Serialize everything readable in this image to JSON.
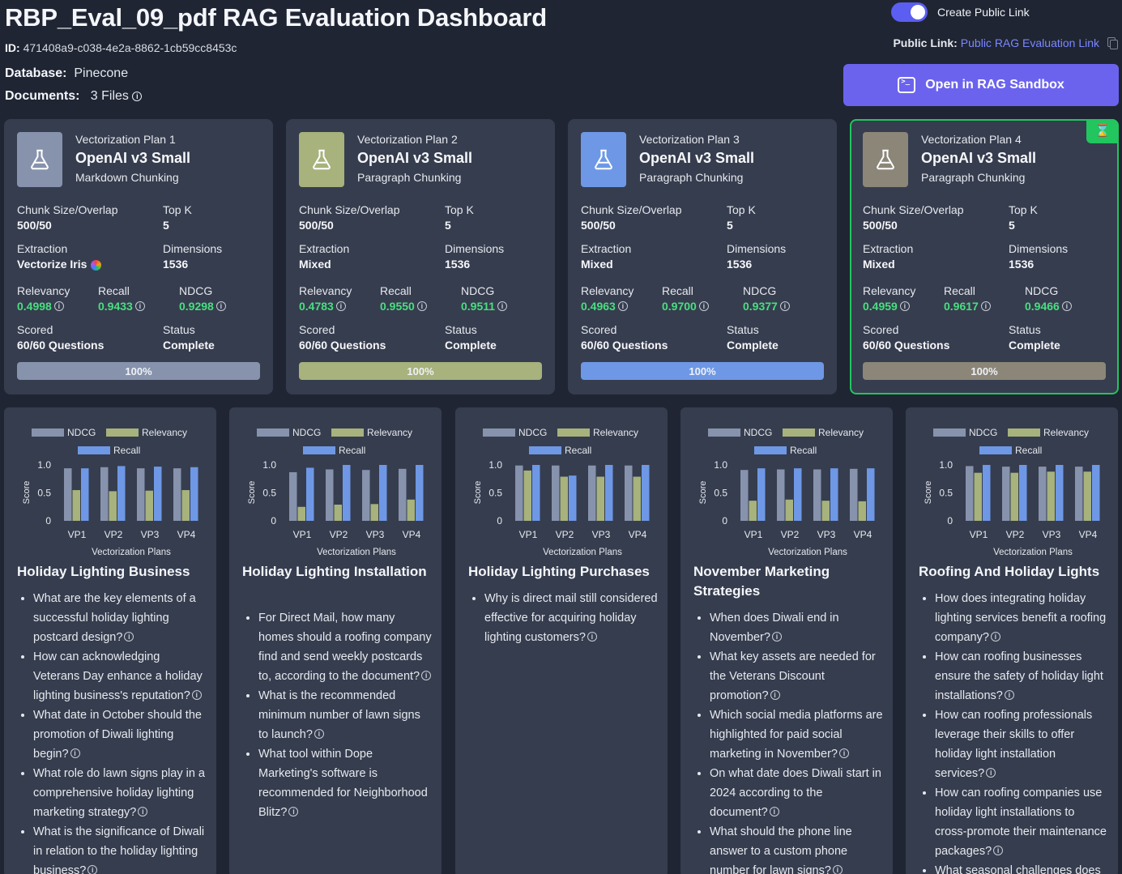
{
  "header": {
    "title": "RBP_Eval_09_pdf RAG Evaluation Dashboard",
    "id_label": "ID:",
    "id_value": "471408a9-c038-4e2a-8862-1cb59cc8453c",
    "database_label": "Database:",
    "database_value": "Pinecone",
    "documents_label": "Documents:",
    "documents_value": "3 Files"
  },
  "public": {
    "toggle_label": "Create Public Link",
    "toggle_on": true,
    "link_label": "Public Link:",
    "link_text": "Public RAG Evaluation Link"
  },
  "sandbox_button": "Open in RAG Sandbox",
  "labels": {
    "chunk": "Chunk Size/Overlap",
    "topk": "Top K",
    "extraction": "Extraction",
    "dimensions": "Dimensions",
    "relevancy": "Relevancy",
    "recall": "Recall",
    "ndcg": "NDCG",
    "scored": "Scored",
    "status": "Status"
  },
  "colors": {
    "ndcg": "#8793ad",
    "relevancy": "#a7b27c",
    "recall": "#6e98e6",
    "plan4": "#8c8678",
    "selected_border": "#22c55e",
    "accent": "#6b63ee",
    "metric_value": "#4ade80"
  },
  "plans": [
    {
      "num": "Vectorization Plan 1",
      "model": "OpenAI v3 Small",
      "chunking": "Markdown Chunking",
      "chunk": "500/50",
      "topk": "5",
      "extraction": "Vectorize Iris",
      "dimensions": "1536",
      "relevancy": "0.4998",
      "recall": "0.9433",
      "ndcg": "0.9298",
      "scored": "60/60 Questions",
      "status": "Complete",
      "progress_label": "100%",
      "progress": 1.0,
      "color": "#8793ad",
      "selected": false
    },
    {
      "num": "Vectorization Plan 2",
      "model": "OpenAI v3 Small",
      "chunking": "Paragraph Chunking",
      "chunk": "500/50",
      "topk": "5",
      "extraction": "Mixed",
      "dimensions": "1536",
      "relevancy": "0.4783",
      "recall": "0.9550",
      "ndcg": "0.9511",
      "scored": "60/60 Questions",
      "status": "Complete",
      "progress_label": "100%",
      "progress": 1.0,
      "color": "#a7b27c",
      "selected": false
    },
    {
      "num": "Vectorization Plan 3",
      "model": "OpenAI v3 Small",
      "chunking": "Paragraph Chunking",
      "chunk": "500/50",
      "topk": "5",
      "extraction": "Mixed",
      "dimensions": "1536",
      "relevancy": "0.4963",
      "recall": "0.9700",
      "ndcg": "0.9377",
      "scored": "60/60 Questions",
      "status": "Complete",
      "progress_label": "100%",
      "progress": 1.0,
      "color": "#6e98e6",
      "selected": false
    },
    {
      "num": "Vectorization Plan 4",
      "model": "OpenAI v3 Small",
      "chunking": "Paragraph Chunking",
      "chunk": "500/50",
      "topk": "5",
      "extraction": "Mixed",
      "dimensions": "1536",
      "relevancy": "0.4959",
      "recall": "0.9617",
      "ndcg": "0.9466",
      "scored": "60/60 Questions",
      "status": "Complete",
      "progress_label": "100%",
      "progress": 1.0,
      "color": "#8c8678",
      "selected": true
    }
  ],
  "chart_data": [
    {
      "type": "bar",
      "title": "",
      "xlabel": "Vectorization Plans",
      "ylabel": "Score",
      "ylim": [
        0,
        1.0
      ],
      "yticks": [
        "0",
        "0.5",
        "1.0"
      ],
      "categories": [
        "VP1",
        "VP2",
        "VP3",
        "VP4"
      ],
      "legend": [
        "NDCG",
        "Relevancy",
        "Recall"
      ],
      "series": [
        {
          "name": "NDCG",
          "values": [
            0.94,
            0.96,
            0.94,
            0.94
          ]
        },
        {
          "name": "Relevancy",
          "values": [
            0.55,
            0.53,
            0.54,
            0.55
          ]
        },
        {
          "name": "Recall",
          "values": [
            0.94,
            0.98,
            0.97,
            0.96
          ]
        }
      ]
    },
    {
      "type": "bar",
      "title": "",
      "xlabel": "Vectorization Plans",
      "ylabel": "Score",
      "ylim": [
        0,
        1.0
      ],
      "yticks": [
        "0",
        "0.5",
        "1.0"
      ],
      "categories": [
        "VP1",
        "VP2",
        "VP3",
        "VP4"
      ],
      "legend": [
        "NDCG",
        "Relevancy",
        "Recall"
      ],
      "series": [
        {
          "name": "NDCG",
          "values": [
            0.87,
            0.92,
            0.91,
            0.93
          ]
        },
        {
          "name": "Relevancy",
          "values": [
            0.25,
            0.29,
            0.3,
            0.38
          ]
        },
        {
          "name": "Recall",
          "values": [
            0.95,
            1.0,
            1.0,
            1.0
          ]
        }
      ]
    },
    {
      "type": "bar",
      "title": "",
      "xlabel": "Vectorization Plans",
      "ylabel": "Score",
      "ylim": [
        0,
        1.0
      ],
      "yticks": [
        "0",
        "0.5",
        "1.0"
      ],
      "categories": [
        "VP1",
        "VP2",
        "VP3",
        "VP4"
      ],
      "legend": [
        "NDCG",
        "Relevancy",
        "Recall"
      ],
      "series": [
        {
          "name": "NDCG",
          "values": [
            0.99,
            0.99,
            0.99,
            0.99
          ]
        },
        {
          "name": "Relevancy",
          "values": [
            0.9,
            0.79,
            0.79,
            0.79
          ]
        },
        {
          "name": "Recall",
          "values": [
            1.0,
            0.81,
            1.0,
            1.0
          ]
        }
      ]
    },
    {
      "type": "bar",
      "title": "",
      "xlabel": "Vectorization Plans",
      "ylabel": "Score",
      "ylim": [
        0,
        1.0
      ],
      "yticks": [
        "0",
        "0.5",
        "1.0"
      ],
      "categories": [
        "VP1",
        "VP2",
        "VP3",
        "VP4"
      ],
      "legend": [
        "NDCG",
        "Relevancy",
        "Recall"
      ],
      "series": [
        {
          "name": "NDCG",
          "values": [
            0.91,
            0.92,
            0.92,
            0.93
          ]
        },
        {
          "name": "Relevancy",
          "values": [
            0.36,
            0.38,
            0.36,
            0.35
          ]
        },
        {
          "name": "Recall",
          "values": [
            0.94,
            0.94,
            0.94,
            0.94
          ]
        }
      ]
    },
    {
      "type": "bar",
      "title": "",
      "xlabel": "Vectorization Plans",
      "ylabel": "Score",
      "ylim": [
        0,
        1.0
      ],
      "yticks": [
        "0",
        "0.5",
        "1.0"
      ],
      "categories": [
        "VP1",
        "VP2",
        "VP3",
        "VP4"
      ],
      "legend": [
        "NDCG",
        "Relevancy",
        "Recall"
      ],
      "series": [
        {
          "name": "NDCG",
          "values": [
            0.98,
            0.97,
            0.97,
            0.97
          ]
        },
        {
          "name": "Relevancy",
          "values": [
            0.86,
            0.86,
            0.88,
            0.88
          ]
        },
        {
          "name": "Recall",
          "values": [
            1.0,
            1.0,
            1.0,
            1.0
          ]
        }
      ]
    }
  ],
  "question_groups": [
    {
      "title": "Holiday Lighting Business",
      "questions": [
        "What are the key elements of a successful holiday lighting postcard design?",
        "How can acknowledging Veterans Day enhance a holiday lighting business's reputation?",
        "What date in October should the promotion of Diwali lighting begin?",
        "What role do lawn signs play in a comprehensive holiday lighting marketing strategy?",
        "What is the significance of Diwali in relation to the holiday lighting business?"
      ]
    },
    {
      "title": "Holiday Lighting Installation",
      "questions": [
        "For Direct Mail, how many homes should a roofing company find and send weekly postcards to, according to the document?",
        "What is the recommended minimum number of lawn signs to launch?",
        "What tool within Dope Marketing's software is recommended for Neighborhood Blitz?"
      ]
    },
    {
      "title": "Holiday Lighting Purchases",
      "questions": [
        "Why is direct mail still considered effective for acquiring holiday lighting customers?"
      ]
    },
    {
      "title": "November Marketing Strategies",
      "questions": [
        "When does Diwali end in November?",
        "What key assets are needed for the Veterans Discount promotion?",
        "Which social media platforms are highlighted for paid social marketing in November?",
        "On what date does Diwali start in 2024 according to the document?",
        "What should the phone line answer to a custom phone number for lawn signs?"
      ]
    },
    {
      "title": "Roofing And Holiday Lights",
      "questions": [
        "How does integrating holiday lighting services benefit a roofing company?",
        "How can roofing businesses ensure the safety of holiday light installations?",
        "How can roofing professionals leverage their skills to offer holiday light installation services?",
        "How can roofing companies use holiday light installations to cross-promote their maintenance packages?",
        "What seasonal challenges does the roofing industry face?"
      ]
    }
  ]
}
